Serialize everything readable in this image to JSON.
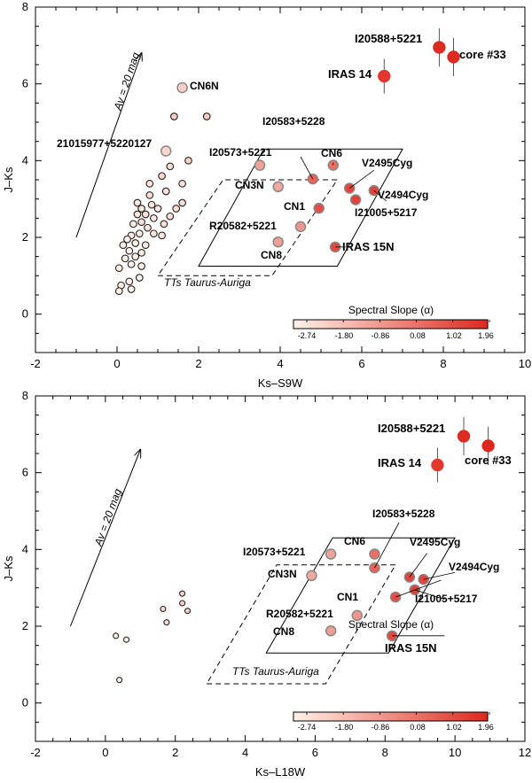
{
  "chart_data": [
    {
      "type": "scatter",
      "title": "",
      "xlabel": "Ks–S9W",
      "ylabel": "J–Ks",
      "xlim": [
        -2,
        10
      ],
      "ylim": [
        -1,
        8
      ],
      "xticks": [
        -2,
        0,
        2,
        4,
        6,
        8,
        10
      ],
      "yticks": [
        0,
        2,
        4,
        6,
        8
      ],
      "reddening_vector": {
        "label": "Av = 20 mag",
        "from": [
          -1.0,
          2.0
        ],
        "to": [
          0.6,
          6.8
        ]
      },
      "ttauri_region": {
        "label": "TTs Taurus-Auriga",
        "polygon": [
          [
            1.0,
            1.0
          ],
          [
            3.8,
            1.0
          ],
          [
            5.4,
            3.5
          ],
          [
            2.6,
            3.5
          ]
        ]
      },
      "box_region": {
        "polygon": [
          [
            2.0,
            1.25
          ],
          [
            5.4,
            1.25
          ],
          [
            7.0,
            4.3
          ],
          [
            3.6,
            4.3
          ]
        ]
      },
      "colorbar": {
        "title": "Spectral Slope (α)",
        "ticks": [
          "-2.74",
          "-1.80",
          "-0.86",
          "0.08",
          "1.02",
          "1.96"
        ],
        "range": [
          -2.74,
          1.96
        ]
      },
      "sources": [
        {
          "name": "I20588+5221",
          "x": 7.9,
          "y": 6.95,
          "alpha": 1.9,
          "err": 0.5
        },
        {
          "name": "core #33",
          "x": 8.25,
          "y": 6.7,
          "alpha": 1.9,
          "err": 0.5
        },
        {
          "name": "IRAS 14",
          "x": 6.55,
          "y": 6.2,
          "alpha": 1.6,
          "err": 0.45
        },
        {
          "name": "CN6N",
          "x": 1.6,
          "y": 5.9,
          "alpha": -1.9
        },
        {
          "name": "21015977+5220127",
          "x": 1.2,
          "y": 4.25,
          "alpha": -2.1
        },
        {
          "name": "I20573+5221",
          "x": 3.5,
          "y": 3.88,
          "alpha": -0.9
        },
        {
          "name": "I20583+5228",
          "x": 4.8,
          "y": 3.52,
          "alpha": 0.6
        },
        {
          "name": "CN6",
          "x": 5.3,
          "y": 3.88,
          "alpha": 0.3
        },
        {
          "name": "CN3N",
          "x": 3.95,
          "y": 3.32,
          "alpha": -1.0
        },
        {
          "name": "V2495Cyg",
          "x": 5.7,
          "y": 3.28,
          "alpha": 1.3
        },
        {
          "name": "V2494Cyg",
          "x": 6.3,
          "y": 3.22,
          "alpha": 1.3
        },
        {
          "name": "CN1",
          "x": 4.95,
          "y": 2.76,
          "alpha": 1.1
        },
        {
          "name": "I21005+5217",
          "x": 5.85,
          "y": 2.98,
          "alpha": 1.4
        },
        {
          "name": "R20582+5221",
          "x": 4.5,
          "y": 2.28,
          "alpha": -0.6
        },
        {
          "name": "CN8",
          "x": 3.95,
          "y": 1.88,
          "alpha": -0.8
        },
        {
          "name": "IRAS 15N",
          "x": 5.35,
          "y": 1.75,
          "alpha": 1.2
        }
      ],
      "field_stars": [
        {
          "x": 1.4,
          "y": 5.15,
          "alpha": -1.8
        },
        {
          "x": 2.2,
          "y": 5.15,
          "alpha": -1.8
        },
        {
          "x": 1.2,
          "y": 4.25,
          "alpha": -2.1
        },
        {
          "x": 1.75,
          "y": 4.0,
          "alpha": -2.0
        },
        {
          "x": 1.3,
          "y": 3.85,
          "alpha": -2.2
        },
        {
          "x": 1.1,
          "y": 3.6,
          "alpha": -2.1
        },
        {
          "x": 1.6,
          "y": 3.4,
          "alpha": -2.3
        },
        {
          "x": 0.8,
          "y": 3.4,
          "alpha": -2.4
        },
        {
          "x": 0.8,
          "y": 3.1,
          "alpha": -2.3
        },
        {
          "x": 1.2,
          "y": 3.2,
          "alpha": -2.3
        },
        {
          "x": 1.6,
          "y": 2.9,
          "alpha": -2.2
        },
        {
          "x": 1.45,
          "y": 2.75,
          "alpha": -2.3
        },
        {
          "x": 1.3,
          "y": 2.55,
          "alpha": -2.2
        },
        {
          "x": 1.0,
          "y": 2.75,
          "alpha": -2.4
        },
        {
          "x": 0.9,
          "y": 2.5,
          "alpha": -2.5
        },
        {
          "x": 0.7,
          "y": 2.6,
          "alpha": -2.4
        },
        {
          "x": 0.5,
          "y": 2.6,
          "alpha": -2.5
        },
        {
          "x": 0.6,
          "y": 2.4,
          "alpha": -2.3
        },
        {
          "x": 0.4,
          "y": 2.35,
          "alpha": -2.6
        },
        {
          "x": 0.75,
          "y": 2.25,
          "alpha": -2.5
        },
        {
          "x": 0.9,
          "y": 2.1,
          "alpha": -2.4
        },
        {
          "x": 1.15,
          "y": 2.35,
          "alpha": -2.3
        },
        {
          "x": 1.1,
          "y": 2.05,
          "alpha": -2.5
        },
        {
          "x": 0.55,
          "y": 2.1,
          "alpha": -2.6
        },
        {
          "x": 0.35,
          "y": 2.05,
          "alpha": -2.6
        },
        {
          "x": 0.45,
          "y": 1.85,
          "alpha": -2.6
        },
        {
          "x": 0.25,
          "y": 1.95,
          "alpha": -2.7
        },
        {
          "x": 0.15,
          "y": 1.8,
          "alpha": -2.7
        },
        {
          "x": 0.3,
          "y": 1.65,
          "alpha": -2.7
        },
        {
          "x": 0.7,
          "y": 1.8,
          "alpha": -2.6
        },
        {
          "x": 0.6,
          "y": 1.6,
          "alpha": -2.6
        },
        {
          "x": 0.45,
          "y": 1.5,
          "alpha": -2.7
        },
        {
          "x": 0.2,
          "y": 1.45,
          "alpha": -2.7
        },
        {
          "x": 0.35,
          "y": 1.3,
          "alpha": -2.7
        },
        {
          "x": 0.6,
          "y": 1.25,
          "alpha": -2.6
        },
        {
          "x": 0.05,
          "y": 1.2,
          "alpha": -2.7
        },
        {
          "x": 0.55,
          "y": 0.95,
          "alpha": -2.7
        },
        {
          "x": 0.3,
          "y": 0.85,
          "alpha": -2.7
        },
        {
          "x": 0.1,
          "y": 0.75,
          "alpha": -2.7
        },
        {
          "x": 0.35,
          "y": 0.65,
          "alpha": -2.7
        },
        {
          "x": 0.05,
          "y": 0.6,
          "alpha": -2.7
        },
        {
          "x": 0.5,
          "y": 2.9,
          "alpha": -2.5
        },
        {
          "x": 0.85,
          "y": 2.85,
          "alpha": -2.4
        },
        {
          "x": 0.6,
          "y": 2.75,
          "alpha": -2.5
        }
      ]
    },
    {
      "type": "scatter",
      "title": "",
      "xlabel": "Ks–L18W",
      "ylabel": "J–Ks",
      "xlim": [
        -2,
        12
      ],
      "ylim": [
        -1,
        8
      ],
      "xticks": [
        -2,
        0,
        2,
        4,
        6,
        8,
        10,
        12
      ],
      "yticks": [
        0,
        2,
        4,
        6,
        8
      ],
      "reddening_vector": {
        "label": "Av = 20 mag",
        "from": [
          -1.0,
          2.0
        ],
        "to": [
          1.0,
          6.6
        ]
      },
      "ttauri_region": {
        "label": "TTs Taurus-Auriga",
        "polygon": [
          [
            2.9,
            0.5
          ],
          [
            6.3,
            0.5
          ],
          [
            8.3,
            3.6
          ],
          [
            4.9,
            3.6
          ]
        ]
      },
      "box_region": {
        "polygon": [
          [
            4.6,
            1.3
          ],
          [
            8.1,
            1.3
          ],
          [
            10.0,
            4.3
          ],
          [
            6.5,
            4.3
          ]
        ]
      },
      "colorbar": {
        "title": "Spectral Slope (α)",
        "ticks": [
          "-2.74",
          "-1.80",
          "-0.86",
          "0.08",
          "1.02",
          "1.96"
        ],
        "range": [
          -2.74,
          1.96
        ]
      },
      "sources": [
        {
          "name": "I20588+5221",
          "x": 10.25,
          "y": 6.95,
          "alpha": 1.9,
          "err": 0.5
        },
        {
          "name": "core #33",
          "x": 10.95,
          "y": 6.7,
          "alpha": 1.95,
          "err": 0.5
        },
        {
          "name": "IRAS 14",
          "x": 9.5,
          "y": 6.2,
          "alpha": 1.6,
          "err": 0.45
        },
        {
          "name": "I20573+5221",
          "x": 6.45,
          "y": 3.88,
          "alpha": -0.9
        },
        {
          "name": "I20583+5228",
          "x": 7.7,
          "y": 3.52,
          "alpha": 0.6
        },
        {
          "name": "CN6",
          "x": 7.7,
          "y": 3.88,
          "alpha": 0.3
        },
        {
          "name": "CN3N",
          "x": 5.9,
          "y": 3.32,
          "alpha": -1.0
        },
        {
          "name": "V2495Cyg",
          "x": 8.7,
          "y": 3.28,
          "alpha": 1.3
        },
        {
          "name": "V2494Cyg",
          "x": 9.1,
          "y": 3.22,
          "alpha": 1.3
        },
        {
          "name": "CN1",
          "x": 8.3,
          "y": 2.76,
          "alpha": 1.1
        },
        {
          "name": "I21005+5217",
          "x": 8.85,
          "y": 2.95,
          "alpha": 1.4
        },
        {
          "name": "R20582+5221",
          "x": 7.2,
          "y": 2.28,
          "alpha": -0.6
        },
        {
          "name": "CN8",
          "x": 6.45,
          "y": 1.88,
          "alpha": -0.8
        },
        {
          "name": "IRAS 15N",
          "x": 8.2,
          "y": 1.75,
          "alpha": 1.2
        }
      ],
      "field_stars": [
        {
          "x": 2.2,
          "y": 2.85,
          "alpha": -1.9
        },
        {
          "x": 2.2,
          "y": 2.6,
          "alpha": -2.0
        },
        {
          "x": 2.35,
          "y": 2.4,
          "alpha": -2.0
        },
        {
          "x": 1.65,
          "y": 2.45,
          "alpha": -2.1
        },
        {
          "x": 1.75,
          "y": 2.1,
          "alpha": -2.2
        },
        {
          "x": 0.3,
          "y": 1.75,
          "alpha": -2.74
        },
        {
          "x": 0.6,
          "y": 1.65,
          "alpha": -2.74
        },
        {
          "x": 0.4,
          "y": 0.6,
          "alpha": -2.74
        }
      ]
    }
  ]
}
